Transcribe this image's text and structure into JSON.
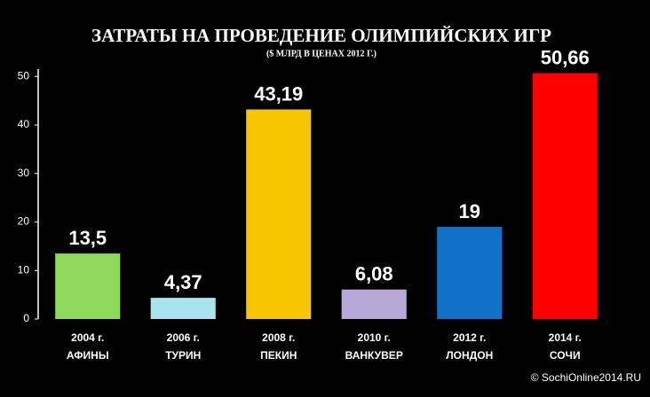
{
  "chart_data": {
    "type": "bar",
    "title": "ЗАТРАТЫ НА ПРОВЕДЕНИЕ ОЛИМПИЙСКИХ ИГР",
    "subtitle": "($ МЛРД В ЦЕНАХ 2012 Г.)",
    "categories": [
      "2004 г.",
      "2006 г.",
      "2008 г.",
      "2010 г.",
      "2012 г.",
      "2014 г."
    ],
    "category_names": [
      "АФИНЫ",
      "ТУРИН",
      "ПЕКИН",
      "ВАНКУВЕР",
      "ЛОНДОН",
      "СОЧИ"
    ],
    "values": [
      13.5,
      4.37,
      43.19,
      6.08,
      19,
      50.66
    ],
    "value_labels": [
      "13,5",
      "4,37",
      "43,19",
      "6,08",
      "19",
      "50,66"
    ],
    "colors": [
      "#8fd85a",
      "#a9e3ee",
      "#f7c600",
      "#b8a8d8",
      "#1170c8",
      "#ff0000"
    ],
    "ylim": [
      0,
      51.5
    ],
    "yticks": [
      0,
      10,
      20,
      30,
      40,
      50
    ],
    "watermark": "© SochiOnline2014.RU"
  }
}
